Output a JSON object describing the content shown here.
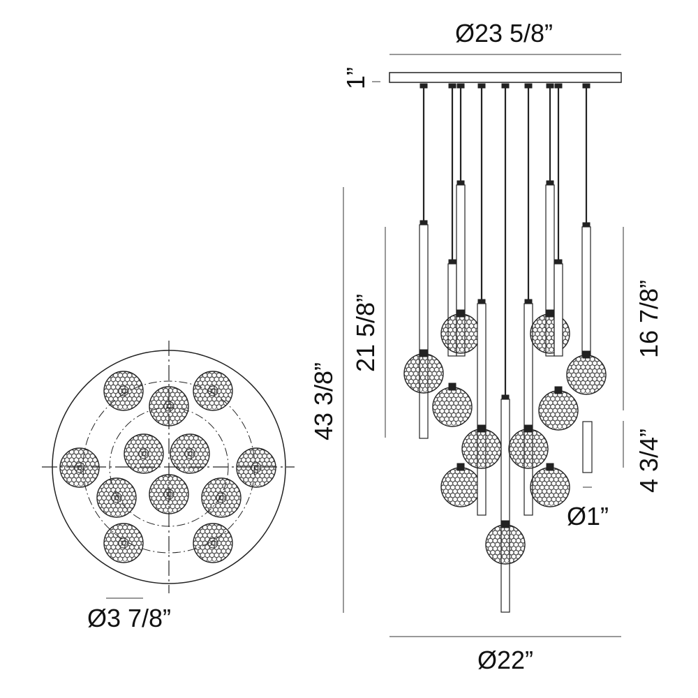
{
  "dimensions": {
    "canopy_diameter": "Ø23 5/8”",
    "canopy_height": "1”",
    "overall_height": "43 3/8”",
    "pendant_height_long": "21 5/8”",
    "pendant_height_short": "16 7/8”",
    "cylinder_height": "4 3/4”",
    "cylinder_diameter": "Ø1”",
    "globe_diameter": "Ø3 7/8”",
    "spread_diameter": "Ø22”"
  },
  "colors": {
    "line": "#222222",
    "background": "#ffffff"
  }
}
